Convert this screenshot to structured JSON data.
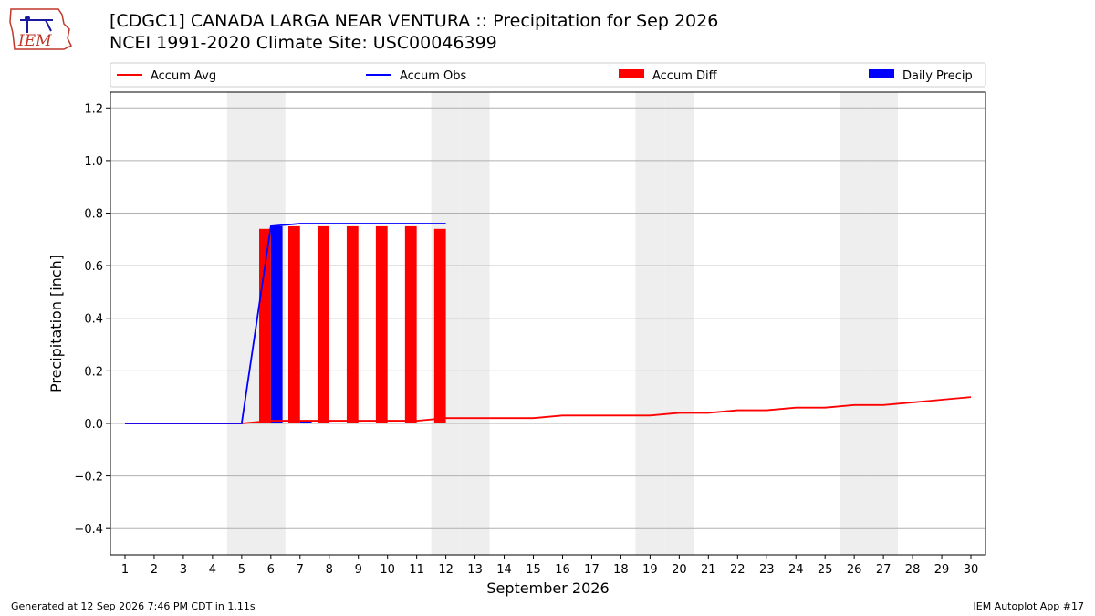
{
  "header": {
    "title_line1": "[CDGC1] CANADA LARGA NEAR VENTURA :: Precipitation for Sep 2026",
    "title_line2": "NCEI 1991-2020 Climate Site: USC00046399",
    "logo_text": "IEM"
  },
  "footer": {
    "generated": "Generated at 12 Sep 2026 7:46 PM CDT in 1.11s",
    "app": "IEM Autoplot App #17"
  },
  "colors": {
    "avg": "#ff0000",
    "obs": "#0000ff",
    "diff": "#ff0000",
    "daily": "#0000ff",
    "weekend": "#eeeeee",
    "grid": "#b0b0b0"
  },
  "chart_data": {
    "type": "bar",
    "xlabel": "September 2026",
    "ylabel": "Precipitation [inch]",
    "xlim": [
      0.5,
      30.5
    ],
    "ylim": [
      -0.5,
      1.26
    ],
    "yticks": [
      -0.4,
      -0.2,
      0.0,
      0.2,
      0.4,
      0.6,
      0.8,
      1.0,
      1.2
    ],
    "ytick_labels": [
      "−0.4",
      "−0.2",
      "0.0",
      "0.2",
      "0.4",
      "0.6",
      "0.8",
      "1.0",
      "1.2"
    ],
    "xticks": [
      1,
      2,
      3,
      4,
      5,
      6,
      7,
      8,
      9,
      10,
      11,
      12,
      13,
      14,
      15,
      16,
      17,
      18,
      19,
      20,
      21,
      22,
      23,
      24,
      25,
      26,
      27,
      28,
      29,
      30
    ],
    "weekend_days": [
      5,
      6,
      12,
      13,
      19,
      20,
      26,
      27
    ],
    "legend": [
      "Accum Avg",
      "Accum Obs",
      "Accum Diff",
      "Daily Precip"
    ],
    "legend_position": "top",
    "grid": "horizontal",
    "days": [
      1,
      2,
      3,
      4,
      5,
      6,
      7,
      8,
      9,
      10,
      11,
      12,
      13,
      14,
      15,
      16,
      17,
      18,
      19,
      20,
      21,
      22,
      23,
      24,
      25,
      26,
      27,
      28,
      29,
      30
    ],
    "accum_avg": [
      0,
      0,
      0,
      0,
      0,
      0.01,
      0.01,
      0.01,
      0.01,
      0.01,
      0.01,
      0.02,
      0.02,
      0.02,
      0.02,
      0.03,
      0.03,
      0.03,
      0.03,
      0.04,
      0.04,
      0.05,
      0.05,
      0.06,
      0.06,
      0.07,
      0.07,
      0.08,
      0.09,
      0.1
    ],
    "accum_obs_days": [
      1,
      2,
      3,
      4,
      5,
      6,
      7,
      8,
      9,
      10,
      11,
      12
    ],
    "accum_obs": [
      0,
      0,
      0,
      0,
      0,
      0.75,
      0.76,
      0.76,
      0.76,
      0.76,
      0.76,
      0.76
    ],
    "accum_diff_days": [
      6,
      7,
      8,
      9,
      10,
      11,
      12
    ],
    "accum_diff": [
      0.74,
      0.75,
      0.75,
      0.75,
      0.75,
      0.75,
      0.74
    ],
    "daily_precip_days": [
      6,
      7
    ],
    "daily_precip": [
      0.75,
      0.01
    ]
  }
}
